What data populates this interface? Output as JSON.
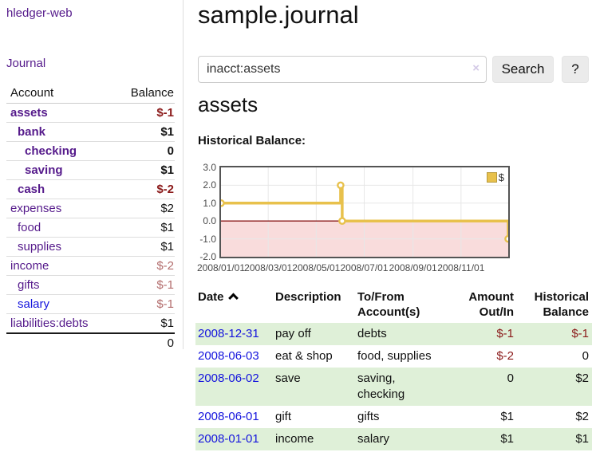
{
  "app": {
    "brand": "hledger-web",
    "nav_journal": "Journal"
  },
  "colors": {
    "purple": "#551a8b",
    "blue": "#1414dd",
    "neg-strong": "#8b1a1a",
    "neg-soft": "#b36d6d",
    "stripe": "#dff0d8",
    "chart-line": "#e8c14c",
    "chart-border": "#545454",
    "zero-line": "#8b1a1a",
    "neg-region": "#f9dcdc",
    "grid": "#e7e7e7",
    "button-bg": "#ebebeb"
  },
  "sidebar": {
    "columns": {
      "account": "Account",
      "balance": "Balance"
    },
    "accounts": [
      {
        "name": "assets",
        "balance": "$-1",
        "depth": 1,
        "bold": true,
        "visited": true
      },
      {
        "name": "bank",
        "balance": "$1",
        "depth": 2,
        "bold": true,
        "visited": true
      },
      {
        "name": "checking",
        "balance": "0",
        "depth": 3,
        "bold": true,
        "visited": true
      },
      {
        "name": "saving",
        "balance": "$1",
        "depth": 3,
        "bold": true,
        "visited": true
      },
      {
        "name": "cash",
        "balance": "$-2",
        "depth": 2,
        "bold": true,
        "visited": true
      },
      {
        "name": "expenses",
        "balance": "$2",
        "depth": 1,
        "bold": false,
        "visited": true
      },
      {
        "name": "food",
        "balance": "$1",
        "depth": 2,
        "bold": false,
        "visited": true
      },
      {
        "name": "supplies",
        "balance": "$1",
        "depth": 2,
        "bold": false,
        "visited": true
      },
      {
        "name": "income",
        "balance": "$-2",
        "depth": 1,
        "bold": false,
        "visited": true
      },
      {
        "name": "gifts",
        "balance": "$-1",
        "depth": 2,
        "bold": false,
        "visited": true
      },
      {
        "name": "salary",
        "balance": "$-1",
        "depth": 2,
        "bold": false,
        "visited": false
      },
      {
        "name": "liabilities:debts",
        "balance": "$1",
        "depth": 1,
        "bold": false,
        "visited": true
      }
    ],
    "total": "0"
  },
  "main": {
    "title": "sample.journal",
    "search": {
      "value": "inacct:assets",
      "clear_icon": "×",
      "button_label": "Search",
      "help_label": "?"
    },
    "account_heading": "assets"
  },
  "chart_data": {
    "type": "line",
    "step": true,
    "title": "Historical Balance:",
    "series": [
      {
        "name": "$",
        "color": "#e8c14c",
        "points": [
          [
            "2008-01-01",
            1
          ],
          [
            "2008-06-01",
            2
          ],
          [
            "2008-06-03",
            0
          ],
          [
            "2008-12-31",
            -1
          ]
        ]
      }
    ],
    "xlim": [
      "2008-01-01",
      "2008-12-31"
    ],
    "ylim": [
      -2,
      3
    ],
    "x_tick_labels": [
      "2008/01/01",
      "2008/03/01",
      "2008/05/01",
      "2008/07/01",
      "2008/09/01",
      "2008/11/01"
    ],
    "y_ticks": [
      3,
      2,
      1,
      0,
      -1,
      -2
    ],
    "y_tick_labels": [
      "3.0",
      "2.0",
      "1.0",
      "0.0",
      "-1.0",
      "-2.0"
    ],
    "legend_position": "top-right",
    "grid": true
  },
  "register": {
    "headers": {
      "date": "Date",
      "description": "Description",
      "accounts": "To/From\nAccount(s)",
      "amount": "Amount\nOut/In",
      "balance": "Historical\nBalance"
    },
    "rows": [
      {
        "date": "2008-12-31",
        "description": "pay off",
        "accounts": "debts",
        "amount": "$-1",
        "balance": "$-1"
      },
      {
        "date": "2008-06-03",
        "description": "eat & shop",
        "accounts": "food, supplies",
        "amount": "$-2",
        "balance": "0"
      },
      {
        "date": "2008-06-02",
        "description": "save",
        "accounts": "saving,\nchecking",
        "amount": "0",
        "balance": "$2"
      },
      {
        "date": "2008-06-01",
        "description": "gift",
        "accounts": "gifts",
        "amount": "$1",
        "balance": "$2"
      },
      {
        "date": "2008-01-01",
        "description": "income",
        "accounts": "salary",
        "amount": "$1",
        "balance": "$1"
      }
    ]
  }
}
